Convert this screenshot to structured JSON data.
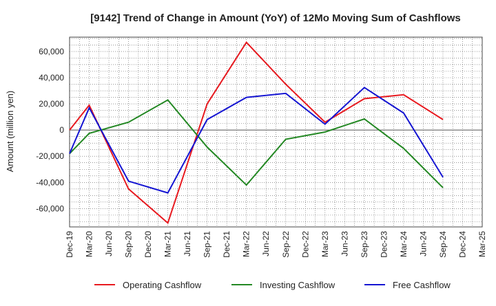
{
  "chart_data": {
    "type": "line",
    "title": "[9142]  Trend of Change in Amount (YoY) of 12Mo Moving Sum of Cashflows",
    "xlabel": "",
    "ylabel": "Amount (million yen)",
    "categories": [
      "Dec-19",
      "Mar-20",
      "Jun-20",
      "Sep-20",
      "Dec-20",
      "Mar-21",
      "Jun-21",
      "Sep-21",
      "Dec-21",
      "Mar-22",
      "Jun-22",
      "Sep-22",
      "Dec-22",
      "Mar-23",
      "Jun-23",
      "Sep-23",
      "Dec-23",
      "Mar-24",
      "Jun-24",
      "Sep-24",
      "Dec-24",
      "Mar-25"
    ],
    "ylim": [
      -74000,
      71000
    ],
    "yticks": [
      60000,
      40000,
      20000,
      0,
      -20000,
      -40000,
      -60000
    ],
    "ytick_labels": [
      "60,000",
      "40,000",
      "20,000",
      "0",
      "-20,000",
      "-40,000",
      "-60,000"
    ],
    "grid": true,
    "legend_position": "bottom",
    "series": [
      {
        "name": "Operating Cashflow",
        "color": "#e8191f",
        "points": [
          [
            0,
            0
          ],
          [
            1,
            19000
          ],
          [
            3,
            -45000
          ],
          [
            5,
            -71000
          ],
          [
            7,
            20000
          ],
          [
            9,
            67000
          ],
          [
            11,
            35000
          ],
          [
            13,
            6000
          ],
          [
            15,
            24000
          ],
          [
            17,
            27000
          ],
          [
            19,
            8000
          ]
        ]
      },
      {
        "name": "Investing Cashflow",
        "color": "#238823",
        "points": [
          [
            0,
            -18000
          ],
          [
            1,
            -2500
          ],
          [
            3,
            6000
          ],
          [
            5,
            23000
          ],
          [
            7,
            -13000
          ],
          [
            9,
            -42000
          ],
          [
            11,
            -7000
          ],
          [
            13,
            -1500
          ],
          [
            15,
            8500
          ],
          [
            17,
            -14000
          ],
          [
            19,
            -44000
          ]
        ]
      },
      {
        "name": "Free Cashflow",
        "color": "#1414d2",
        "points": [
          [
            0,
            -18000
          ],
          [
            1,
            17000
          ],
          [
            3,
            -39000
          ],
          [
            5,
            -48000
          ],
          [
            7,
            8000
          ],
          [
            9,
            25000
          ],
          [
            11,
            28000
          ],
          [
            13,
            4500
          ],
          [
            15,
            32500
          ],
          [
            17,
            13000
          ],
          [
            19,
            -36000
          ]
        ]
      }
    ]
  }
}
